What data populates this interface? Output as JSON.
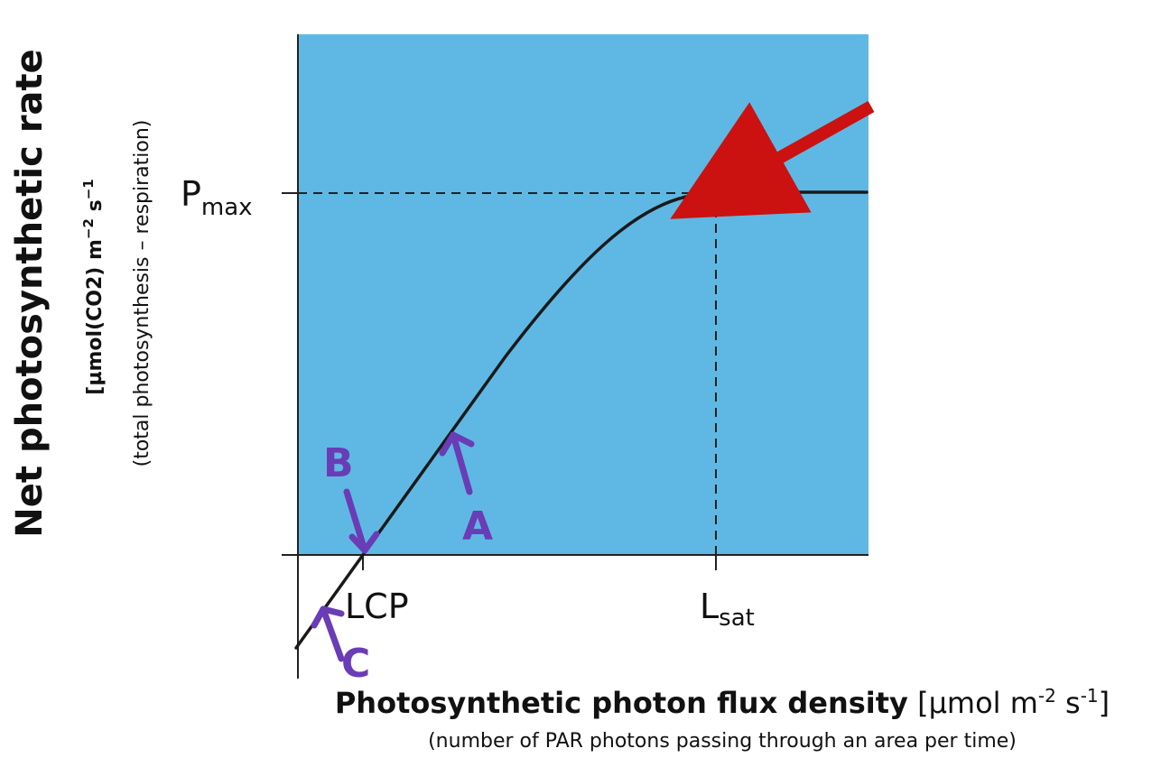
{
  "y_axis": {
    "title": "Net photosynthetic rate",
    "unit_prefix": "[µmol(CO2) m",
    "unit_exp1": "−2",
    "unit_mid": " s",
    "unit_exp2": "−1",
    "note": "(total photosynthesis – respiration)"
  },
  "x_axis": {
    "title_bold": "Photosynthetic photon flux density",
    "unit_prefix": " [µmol m",
    "unit_exp1": "-2",
    "unit_mid": " s",
    "unit_exp2": "-1",
    "unit_end": "]",
    "note": "(number of PAR photons passing through an area per time)"
  },
  "pmax": {
    "main": "P",
    "sub": "max"
  },
  "lcp_label": "LCP",
  "lsat": {
    "main": "L",
    "sub": "sat"
  },
  "annotations": {
    "a": "A",
    "b": "B",
    "c": "C"
  },
  "colors": {
    "plot_background": "#5fb8e3",
    "curve": "#1a1a1a",
    "pointer_arrow": "#cc1111",
    "handwriting": "#6a3cb5"
  }
}
